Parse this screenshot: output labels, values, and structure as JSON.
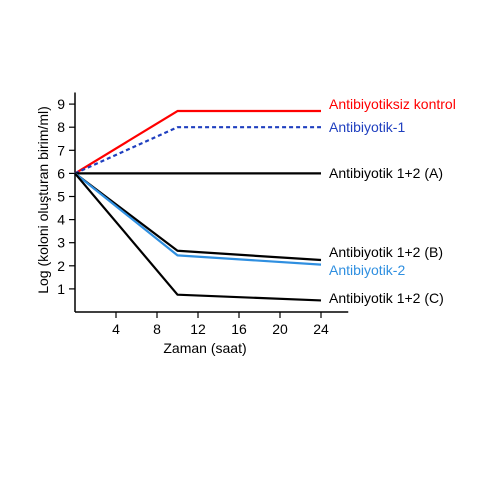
{
  "chart_data": {
    "type": "line",
    "xlabel": "Zaman (saat)",
    "ylabel": "Log (koloni oluşturan birim/ml)",
    "xlim": [
      0,
      25
    ],
    "ylim": [
      0,
      9.5
    ],
    "xticks": [
      4,
      8,
      12,
      16,
      20,
      24
    ],
    "yticks": [
      1,
      2,
      3,
      4,
      5,
      6,
      7,
      8,
      9
    ],
    "grid": false,
    "legend": "right-end labels",
    "series": [
      {
        "name": "Antibiyotiksiz kontrol",
        "color": "#ff0000",
        "dash": false,
        "x": [
          0,
          10,
          24
        ],
        "y": [
          6,
          8.7,
          8.7
        ]
      },
      {
        "name": "Antibiyotik-1",
        "color": "#1f3fbf",
        "dash": true,
        "x": [
          0,
          10,
          24
        ],
        "y": [
          6,
          8,
          8
        ]
      },
      {
        "name": "Antibiyotik 1+2 (A)",
        "color": "#000000",
        "dash": false,
        "x": [
          0,
          24
        ],
        "y": [
          6,
          6
        ]
      },
      {
        "name": "Antibiyotik 1+2 (B)",
        "color": "#000000",
        "dash": false,
        "x": [
          0,
          10,
          24
        ],
        "y": [
          6,
          2.65,
          2.25
        ]
      },
      {
        "name": "Antibiyotik-2",
        "color": "#2f8fe0",
        "dash": false,
        "x": [
          0,
          10,
          24
        ],
        "y": [
          6,
          2.45,
          2.05
        ]
      },
      {
        "name": "Antibiyotik 1+2 (C)",
        "color": "#000000",
        "dash": false,
        "x": [
          0,
          10,
          24
        ],
        "y": [
          6,
          0.75,
          0.5
        ]
      }
    ]
  }
}
